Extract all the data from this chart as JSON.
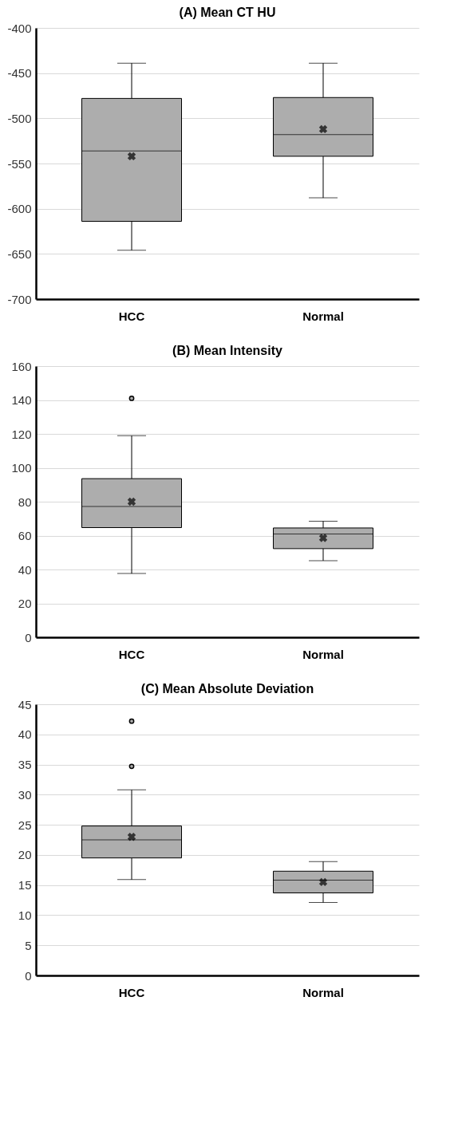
{
  "chart_data": [
    {
      "type": "box",
      "title": "(A) Mean CT HU",
      "categories": [
        "HCC",
        "Normal"
      ],
      "ylim": [
        -700,
        -400
      ],
      "yticks": [
        -700,
        -650,
        -600,
        -550,
        -500,
        -450,
        -400
      ],
      "grid": "y",
      "series": [
        {
          "color": "#adadad",
          "boxes": [
            {
              "low": -646,
              "q1": -614,
              "median": -536,
              "q3": -478,
              "high": -439,
              "mean": -542
            },
            {
              "low": -588,
              "q1": -542,
              "median": -518,
              "q3": -477,
              "high": -439,
              "mean": -512
            }
          ]
        }
      ]
    },
    {
      "type": "box",
      "title": "(B) Mean Intensity",
      "categories": [
        "HCC",
        "Normal"
      ],
      "ylim": [
        0,
        160
      ],
      "yticks": [
        0,
        20,
        40,
        60,
        80,
        100,
        120,
        140,
        160
      ],
      "grid": "y",
      "series": [
        {
          "color": "#adadad",
          "boxes": [
            {
              "low": 37.6,
              "q1": 64.7,
              "median": 77.2,
              "q3": 93.6,
              "high": 119,
              "mean": 80,
              "outliers": [
                141
              ]
            },
            {
              "low": 45.2,
              "q1": 52.3,
              "median": 60.9,
              "q3": 64.5,
              "high": 68.5,
              "mean": 58.6
            }
          ]
        }
      ]
    },
    {
      "type": "box",
      "title": "(C) Mean Absolute Deviation",
      "categories": [
        "HCC",
        "Normal"
      ],
      "ylim": [
        0,
        45
      ],
      "yticks": [
        0,
        5,
        10,
        15,
        20,
        25,
        30,
        35,
        40,
        45
      ],
      "grid": "y",
      "series": [
        {
          "color": "#adadad",
          "boxes": [
            {
              "low": 15.9,
              "q1": 19.5,
              "median": 22.5,
              "q3": 24.8,
              "high": 30.8,
              "mean": 23.0,
              "outliers": [
                42.2,
                34.7
              ]
            },
            {
              "low": 12.1,
              "q1": 13.7,
              "median": 15.8,
              "q3": 17.3,
              "high": 18.9,
              "mean": 15.5
            }
          ]
        }
      ]
    }
  ]
}
